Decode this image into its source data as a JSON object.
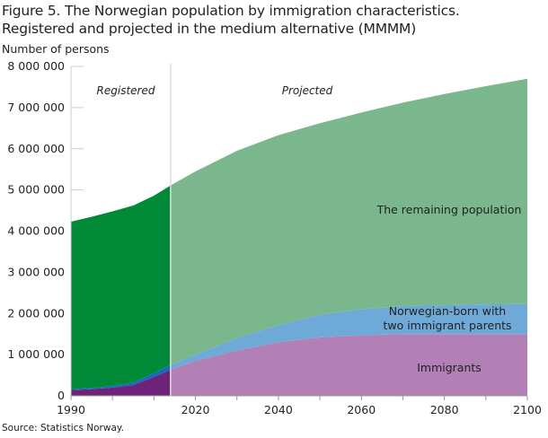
{
  "chart_data": {
    "type": "area",
    "stacked": true,
    "title": "Figure 5. The Norwegian population by immigration characteristics. Registered and projected in the medium alternative (MMMM)",
    "title_lines": [
      "Figure 5. The Norwegian population by immigration characteristics.",
      "Registered and projected in the medium alternative (MMMM)"
    ],
    "ylabel": "Number of persons",
    "source": "Source: Statistics Norway.",
    "xlim": [
      1990,
      2100
    ],
    "ylim": [
      0,
      8000000
    ],
    "x_ticks": [
      "1990",
      "2020",
      "2040",
      "2060",
      "2080",
      "2100"
    ],
    "x_tick_values": [
      1990,
      2020,
      2040,
      2060,
      2080,
      2100
    ],
    "y_ticks": [
      "0",
      "1 000 000",
      "2 000 000",
      "3 000 000",
      "4 000 000",
      "5 000 000",
      "6 000 000",
      "7 000 000",
      "8 000 000"
    ],
    "y_tick_values": [
      0,
      1000000,
      2000000,
      3000000,
      4000000,
      5000000,
      6000000,
      7000000,
      8000000
    ],
    "period_labels": {
      "registered": "Registered",
      "projected": "Projected"
    },
    "split_year": 2014,
    "x": [
      1990,
      1995,
      2000,
      2005,
      2010,
      2014,
      2020,
      2030,
      2040,
      2050,
      2060,
      2070,
      2080,
      2090,
      2100
    ],
    "series": [
      {
        "name": "Immigrants",
        "label": "Immigrants",
        "values": [
          140000,
          160000,
          200000,
          260000,
          460000,
          630000,
          850000,
          1100000,
          1300000,
          1420000,
          1470000,
          1500000,
          1500000,
          1500000,
          1500000
        ],
        "color_registered": "#6c2378",
        "color_projected": "#b27fb7"
      },
      {
        "name": "Norwegian-born with two immigrant parents",
        "label_lines": [
          "Norwegian-born with",
          "two immigrant parents"
        ],
        "values": [
          20000,
          30000,
          40000,
          60000,
          90000,
          120000,
          150000,
          300000,
          420000,
          550000,
          630000,
          680000,
          700000,
          720000,
          730000
        ],
        "color_registered": "#1a66c4",
        "color_projected": "#6fa9d8"
      },
      {
        "name": "The remaining population",
        "label": "The remaining population",
        "values": [
          4070000,
          4160000,
          4240000,
          4300000,
          4310000,
          4360000,
          4450000,
          4550000,
          4610000,
          4650000,
          4780000,
          4940000,
          5130000,
          5300000,
          5470000
        ],
        "color_registered": "#008a38",
        "color_projected": "#7ab78c"
      }
    ]
  }
}
